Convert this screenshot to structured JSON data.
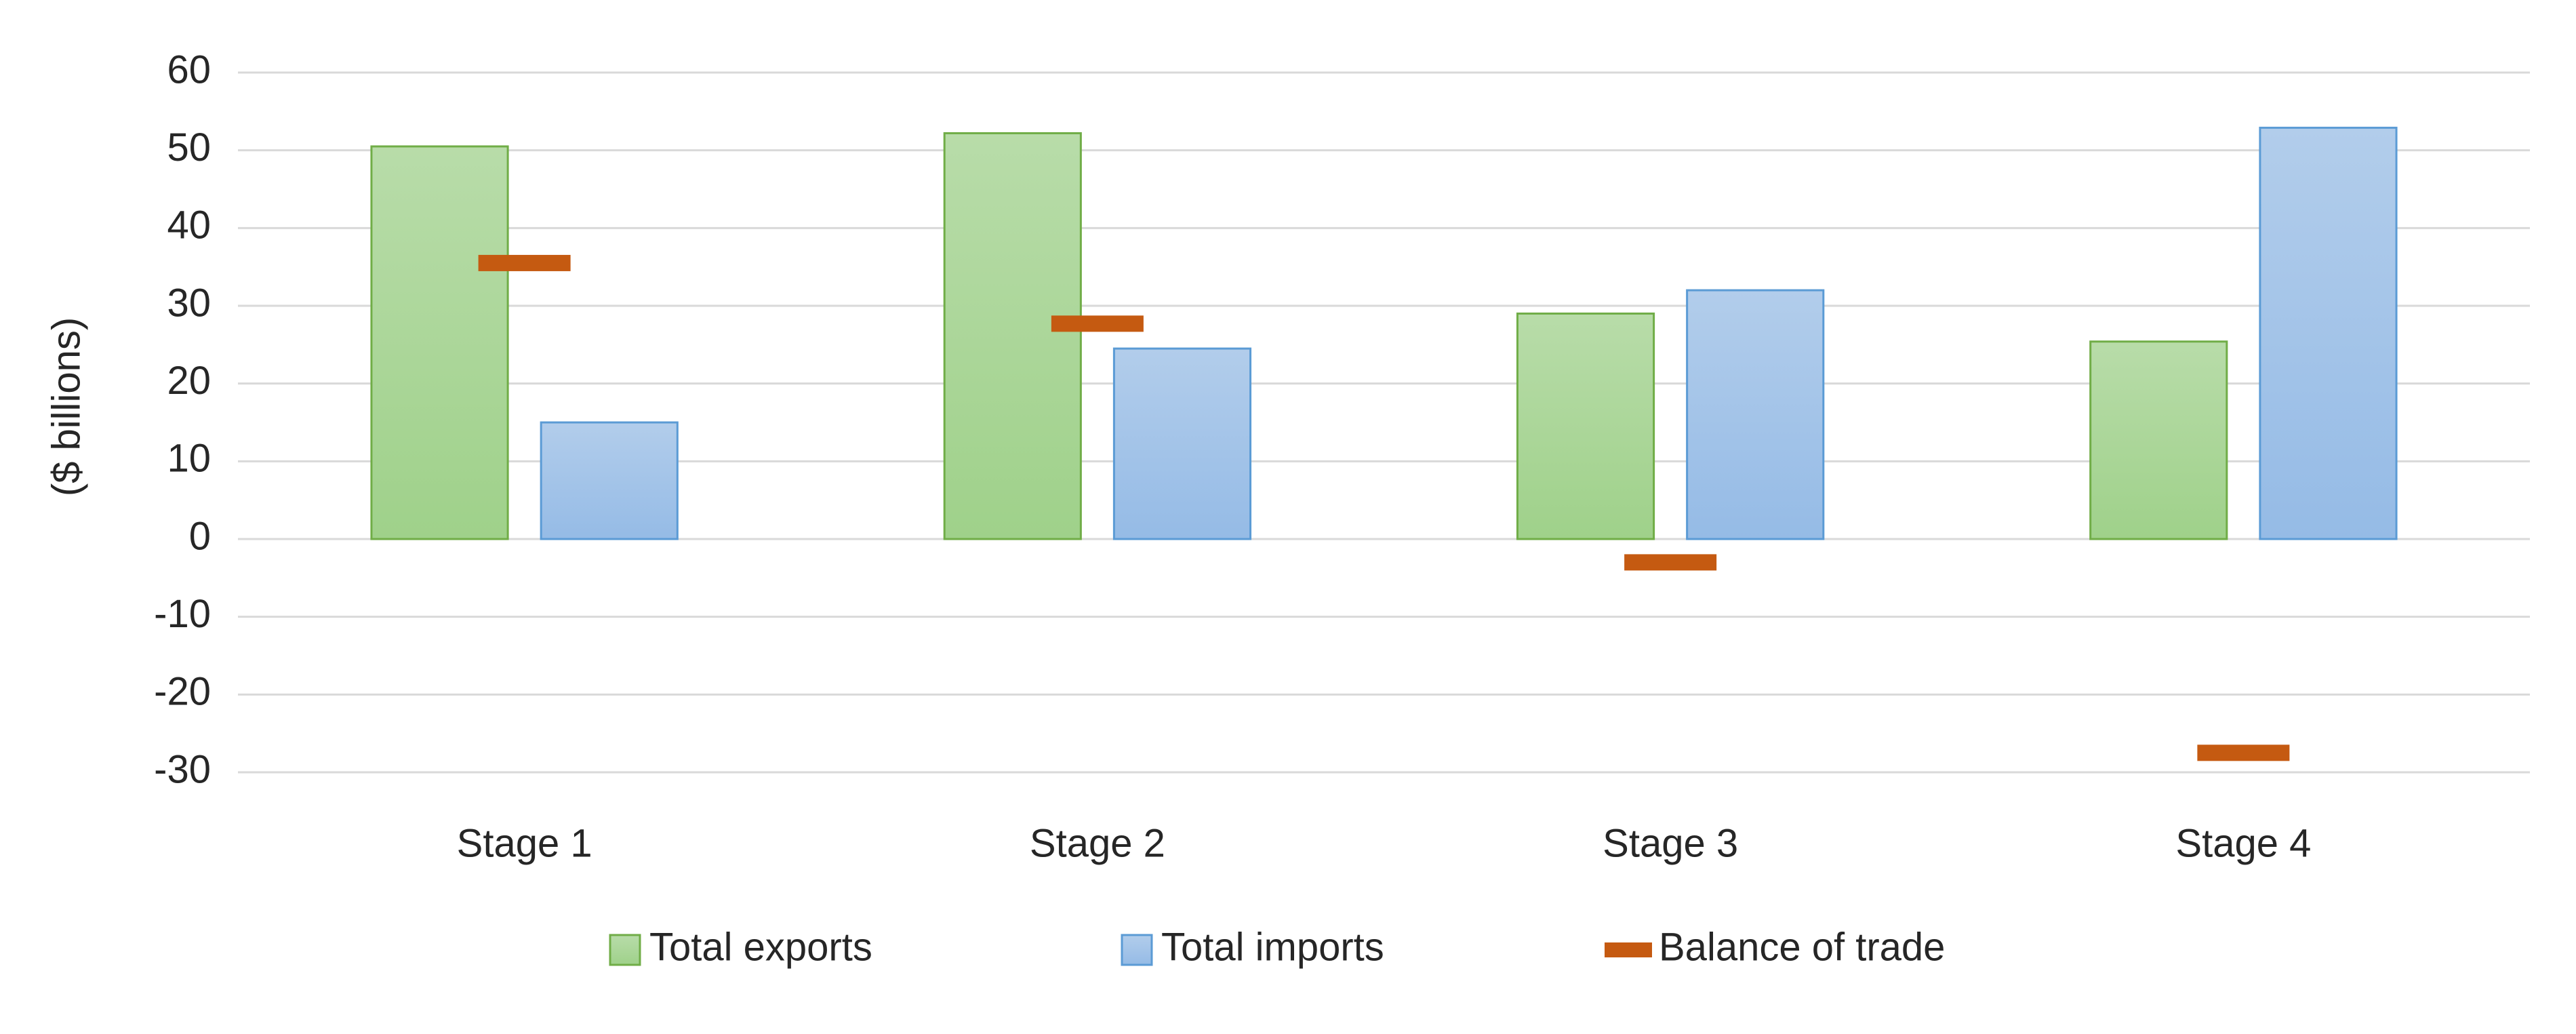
{
  "chart_data": {
    "type": "bar",
    "y_label": "($ billions)",
    "categories": [
      "Stage 1",
      "Stage 2",
      "Stage 3",
      "Stage 4"
    ],
    "series": [
      {
        "name": "Total exports",
        "type": "bar",
        "color": "#9fd18a",
        "edge": "#70ad47",
        "values": [
          50.5,
          52.2,
          29,
          25.4
        ]
      },
      {
        "name": "Total imports",
        "type": "bar",
        "color": "#95bbe6",
        "edge": "#5b9bd5",
        "values": [
          15,
          24.5,
          32,
          52.9
        ]
      },
      {
        "name": "Balance of trade",
        "type": "dash",
        "color": "#c55a11",
        "values": [
          35.5,
          27.7,
          -3,
          -27.5
        ]
      }
    ],
    "ylim": [
      -30,
      60
    ],
    "yticks": [
      -30,
      -20,
      -10,
      0,
      10,
      20,
      30,
      40,
      50,
      60
    ],
    "grid": true,
    "legend": "bottom"
  }
}
